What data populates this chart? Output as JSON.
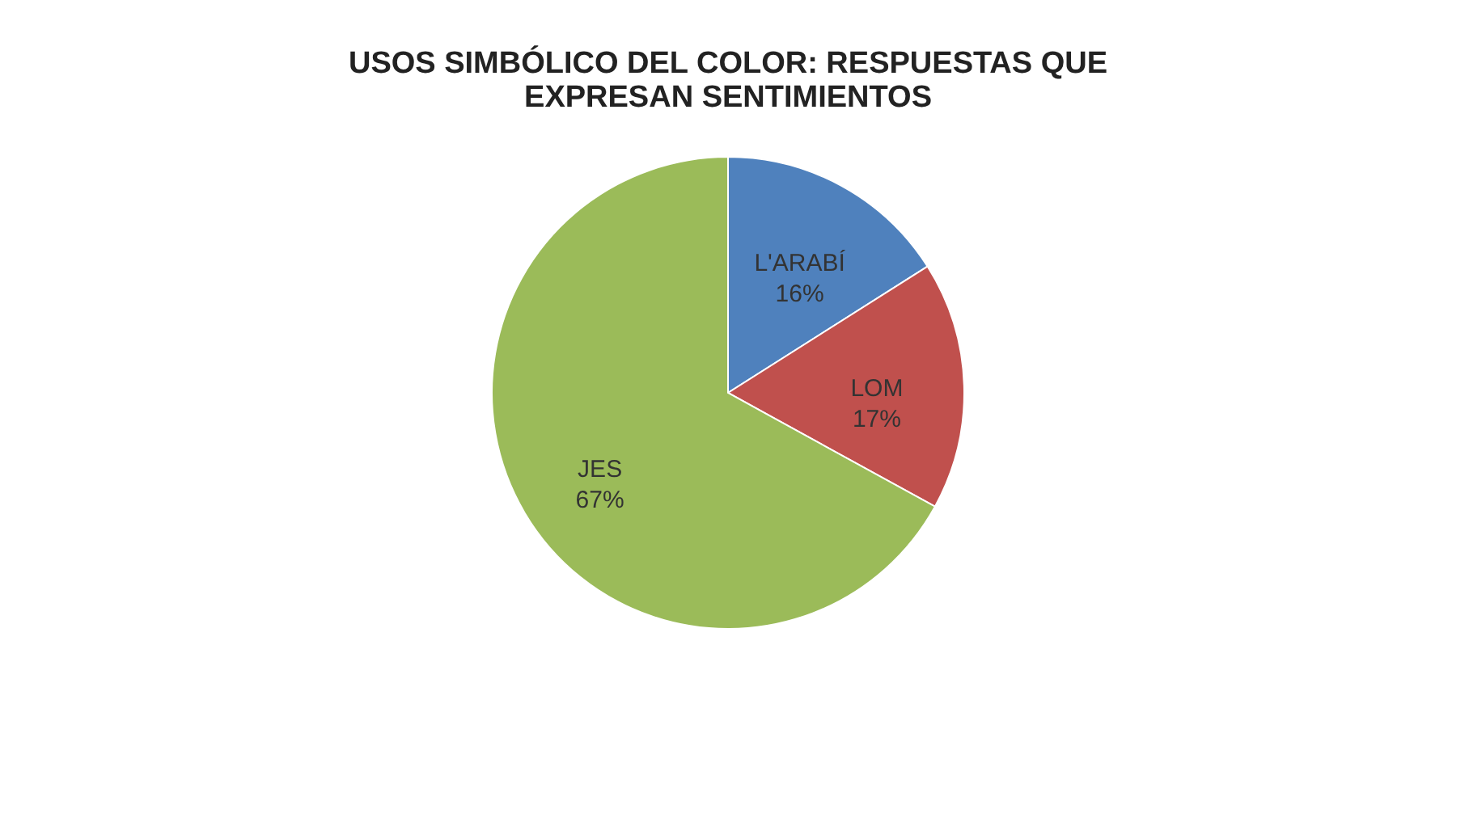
{
  "chart_data": {
    "type": "pie",
    "title": "USOS SIMBÓLICO DEL COLOR: RESPUESTAS QUE EXPRESAN SENTIMIENTOS",
    "categories": [
      "L'ARABÍ",
      "LOM",
      "JES"
    ],
    "values": [
      16,
      17,
      67
    ],
    "value_labels": [
      "16%",
      "17%",
      "67%"
    ],
    "colors": [
      "#4f81bd",
      "#c0504d",
      "#9bbb59"
    ],
    "legend": false
  }
}
